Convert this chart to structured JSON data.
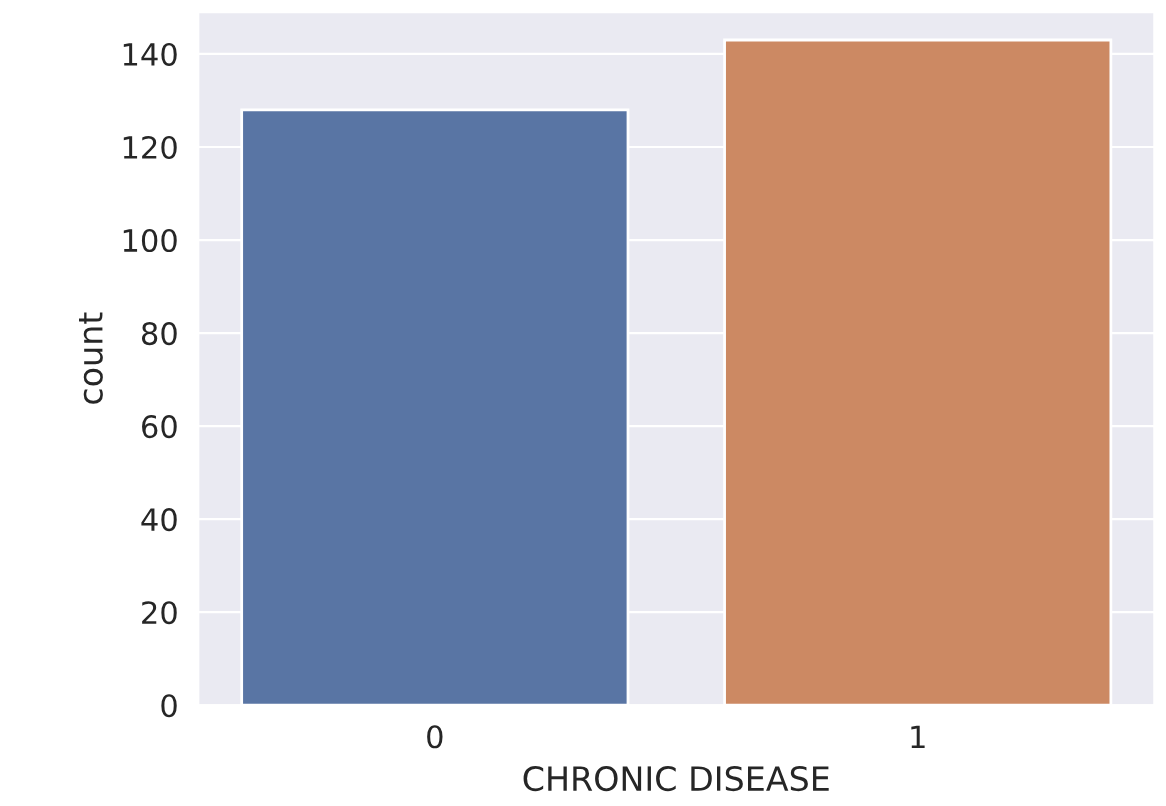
{
  "chart_data": {
    "type": "bar",
    "xlabel": "CHRONIC DISEASE",
    "ylabel": "count",
    "categories": [
      "0",
      "1"
    ],
    "values": [
      128,
      143
    ],
    "colors": [
      "#5975a4",
      "#cc8963"
    ],
    "ylim": [
      0,
      149
    ],
    "yticks": [
      0,
      20,
      40,
      60,
      80,
      100,
      120,
      140
    ],
    "grid": "y"
  }
}
